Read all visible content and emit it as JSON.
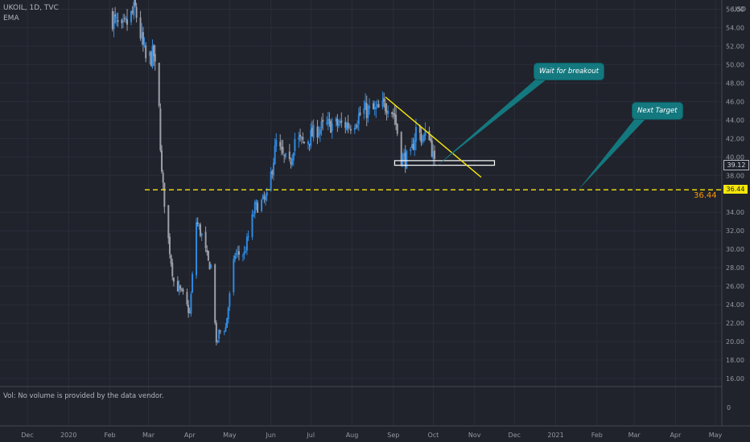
{
  "header": {
    "symbol_line": "UKOIL, 1D, TVC",
    "indicator": "EMA"
  },
  "volume_note": "Vol: No volume is provided by the data vendor.",
  "currency": "USD",
  "last_price_label": "39.12",
  "target_tag_label": "36.44",
  "target_side_label": "36.44",
  "callouts": {
    "breakout": "Wait for breakout",
    "target": "Next Target"
  },
  "volume_axis_label": "0",
  "colors": {
    "background": "#20232c",
    "grid": "#2a2e39",
    "candle_up": "#2f89e0",
    "candle_down": "#9c9fa8",
    "trendline": "#f5e60a",
    "target_line": "#f5e60a",
    "callout": "#14787f",
    "target_text": "#ff9800"
  },
  "chart_data": {
    "type": "candlestick",
    "title": "UKOIL, 1D, TVC",
    "x_tick_labels": [
      "Dec",
      "2020",
      "Feb",
      "Mar",
      "Apr",
      "May",
      "Jun",
      "Jul",
      "Aug",
      "Sep",
      "Oct",
      "Nov",
      "Dec",
      "2021",
      "Feb",
      "Mar",
      "Apr",
      "May"
    ],
    "y_tick_labels": [
      "16.00",
      "18.00",
      "20.00",
      "22.00",
      "24.00",
      "26.00",
      "28.00",
      "30.00",
      "32.00",
      "34.00",
      "38.00",
      "40.00",
      "42.00",
      "44.00",
      "46.00",
      "48.00",
      "50.00",
      "52.00",
      "54.00",
      "56.00"
    ],
    "ylim": [
      15,
      56
    ],
    "close_path": [
      [
        "2020-02-01",
        55.5
      ],
      [
        "2020-02-10",
        53.5
      ],
      [
        "2020-02-20",
        56.0
      ],
      [
        "2020-02-28",
        50.5
      ],
      [
        "2020-03-05",
        51.0
      ],
      [
        "2020-03-09",
        45.0
      ],
      [
        "2020-03-11",
        38.0
      ],
      [
        "2020-03-16",
        31.0
      ],
      [
        "2020-03-20",
        26.5
      ],
      [
        "2020-03-27",
        25.0
      ],
      [
        "2020-04-01",
        23.0
      ],
      [
        "2020-04-06",
        33.0
      ],
      [
        "2020-04-10",
        31.5
      ],
      [
        "2020-04-15",
        28.5
      ],
      [
        "2020-04-18",
        28.0
      ],
      [
        "2020-04-21",
        19.5
      ],
      [
        "2020-04-23",
        21.0
      ],
      [
        "2020-04-28",
        21.5
      ],
      [
        "2020-05-05",
        29.5
      ],
      [
        "2020-05-12",
        29.5
      ],
      [
        "2020-05-20",
        34.5
      ],
      [
        "2020-05-29",
        35.5
      ],
      [
        "2020-06-05",
        41.5
      ],
      [
        "2020-06-10",
        40.0
      ],
      [
        "2020-06-15",
        39.0
      ],
      [
        "2020-06-19",
        42.0
      ],
      [
        "2020-06-26",
        41.5
      ],
      [
        "2020-07-06",
        43.0
      ],
      [
        "2020-07-16",
        43.5
      ],
      [
        "2020-07-31",
        43.5
      ],
      [
        "2020-08-10",
        45.0
      ],
      [
        "2020-08-20",
        45.0
      ],
      [
        "2020-08-28",
        45.8
      ],
      [
        "2020-09-02",
        44.5
      ],
      [
        "2020-09-07",
        40.0
      ],
      [
        "2020-09-10",
        39.8
      ],
      [
        "2020-09-14",
        40.0
      ],
      [
        "2020-09-18",
        43.0
      ],
      [
        "2020-09-23",
        42.0
      ],
      [
        "2020-09-28",
        42.5
      ],
      [
        "2020-10-01",
        40.0
      ],
      [
        "2020-10-02",
        39.12
      ]
    ],
    "annotations": {
      "trendline": {
        "start": [
          "2020-08-26",
          46.5
        ],
        "end": [
          "2020-11-06",
          37.8
        ]
      },
      "support_box": {
        "start": [
          "2020-09-02",
          39.6
        ],
        "end": [
          "2020-11-16",
          39.1
        ]
      },
      "target_level": 36.44,
      "last_price": 39.12
    }
  }
}
